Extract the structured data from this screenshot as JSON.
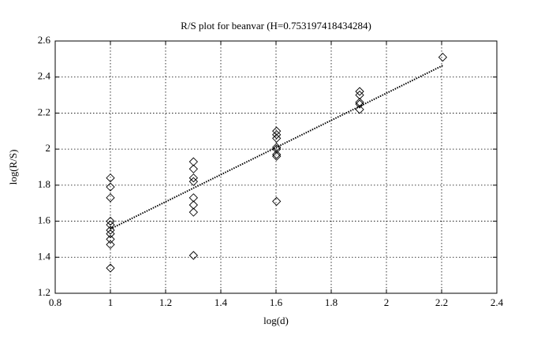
{
  "chart_data": {
    "type": "scatter",
    "title": "R/S plot for beanvar (H=0.753197418434284)",
    "x_label": "log(d)",
    "y_label": "log(R/S)",
    "xlim": [
      0.8,
      2.4
    ],
    "xticks": [
      0.8,
      1,
      1.2,
      1.4,
      1.6,
      1.8,
      2,
      2.2,
      2.4
    ],
    "ylim": [
      1.2,
      2.6
    ],
    "yticks": [
      1.2,
      1.4,
      1.6,
      1.8,
      2,
      2.2,
      2.4,
      2.6
    ],
    "grid": true,
    "series": [
      {
        "marker": "diamond",
        "color": "#000000",
        "x": [
          1,
          1,
          1,
          1,
          1,
          1,
          1,
          1,
          1,
          1,
          1.301,
          1.301,
          1.301,
          1.301,
          1.301,
          1.301,
          1.301,
          1.301,
          1.602,
          1.602,
          1.602,
          1.602,
          1.602,
          1.602,
          1.602,
          1.602,
          1.903,
          1.903,
          1.903,
          1.903,
          1.903,
          2.204
        ],
        "values": [
          1.84,
          1.79,
          1.73,
          1.6,
          1.58,
          1.55,
          1.53,
          1.5,
          1.47,
          1.34,
          1.93,
          1.89,
          1.84,
          1.82,
          1.73,
          1.69,
          1.65,
          1.41,
          2.1,
          2.08,
          2.06,
          2.01,
          2.0,
          1.97,
          1.96,
          1.71,
          2.32,
          2.3,
          2.26,
          2.25,
          2.22,
          2.51
        ]
      },
      {
        "marker": "none",
        "line_style": "dotted",
        "color": "#000000",
        "x": [
          1,
          2.204
        ],
        "values": [
          1.557,
          2.464
        ]
      }
    ]
  }
}
